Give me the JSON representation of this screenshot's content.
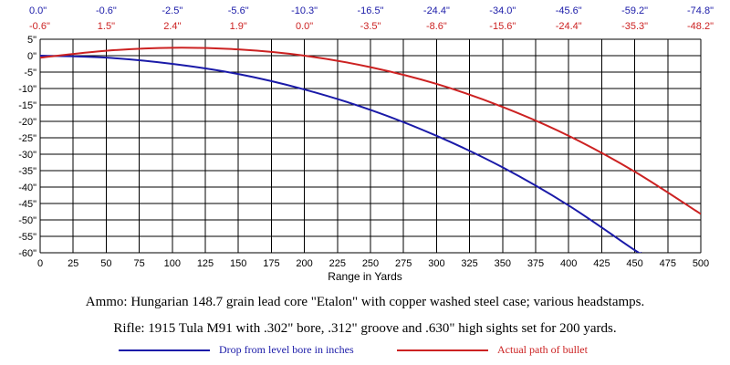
{
  "chart_data": {
    "type": "line",
    "title": "",
    "xlabel": "Range in Yards",
    "ylabel": "",
    "xlim": [
      0,
      500
    ],
    "ylim": [
      -60,
      5
    ],
    "grid": true,
    "x_ticks": [
      0,
      25,
      50,
      75,
      100,
      125,
      150,
      175,
      200,
      225,
      250,
      275,
      300,
      325,
      350,
      375,
      400,
      425,
      450,
      475,
      500
    ],
    "y_ticks": [
      5,
      0,
      -5,
      -10,
      -15,
      -20,
      -25,
      -30,
      -35,
      -40,
      -45,
      -50,
      -55,
      -60
    ],
    "y_tick_labels": [
      "5\"",
      "0\"",
      "-5\"",
      "-10\"",
      "-15\"",
      "-20\"",
      "-25\"",
      "-30\"",
      "-35\"",
      "-40\"",
      "-45\"",
      "-50\"",
      "-55\"",
      "-60\""
    ],
    "top_table": {
      "positions": [
        0,
        50,
        100,
        150,
        200,
        250,
        300,
        350,
        400,
        450,
        500
      ],
      "drop_row": [
        "0.0\"",
        "-0.6\"",
        "-2.5\"",
        "-5.6\"",
        "-10.3\"",
        "-16.5\"",
        "-24.4\"",
        "-34.0\"",
        "-45.6\"",
        "-59.2\"",
        "-74.8\""
      ],
      "path_row": [
        "-0.6\"",
        "1.5\"",
        "2.4\"",
        "1.9\"",
        "0.0\"",
        "-3.5\"",
        "-8.6\"",
        "-15.6\"",
        "-24.4\"",
        "-35.3\"",
        "-48.2\""
      ]
    },
    "series": [
      {
        "name": "Drop from level bore in inches",
        "color": "#1a1aa8",
        "x": [
          0,
          50,
          100,
          150,
          200,
          250,
          300,
          350,
          400,
          450,
          455
        ],
        "values": [
          0.0,
          -0.6,
          -2.5,
          -5.6,
          -10.3,
          -16.5,
          -24.4,
          -34.0,
          -45.6,
          -59.2,
          -60.0
        ]
      },
      {
        "name": "Actual path of bullet",
        "color": "#cc2222",
        "x": [
          0,
          50,
          100,
          150,
          200,
          250,
          300,
          350,
          400,
          450,
          500
        ],
        "values": [
          -0.6,
          1.5,
          2.4,
          1.9,
          0.0,
          -3.5,
          -8.6,
          -15.6,
          -24.4,
          -35.3,
          -48.2
        ]
      }
    ]
  },
  "captions": {
    "ammo": "Ammo:  Hungarian 148.7 grain lead core \"Etalon\" with copper washed steel case; various headstamps.",
    "rifle": "Rifle:  1915 Tula M91 with .302\" bore, .312\" groove and .630\" high sights set for 200 yards."
  },
  "legend": {
    "drop_label": "Drop from level bore in inches",
    "path_label": "Actual path of bullet"
  }
}
